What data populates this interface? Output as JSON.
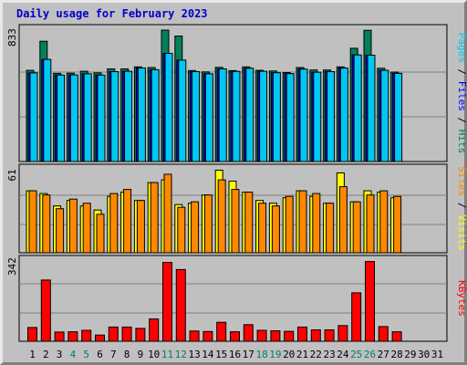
{
  "title": "Daily usage for February 2023",
  "colors": {
    "hits": "#00805c",
    "files": "#0000ff",
    "pages": "#00c8f0",
    "visits": "#ffff00",
    "sites": "#ff8800",
    "kbytes": "#ff0000",
    "weekend_label": "#00805c",
    "weekday_label": "#000000"
  },
  "chart_data": [
    {
      "type": "bar",
      "panel": "hits-files-pages",
      "ymax_label": "833",
      "ylim": [
        0,
        833
      ],
      "legend": [
        {
          "text": "Pages",
          "color": "#00c8f0"
        },
        {
          "text": " / ",
          "color": "#000000"
        },
        {
          "text": "Files",
          "color": "#0000ff"
        },
        {
          "text": " / ",
          "color": "#000000"
        },
        {
          "text": "Hits",
          "color": "#00805c"
        }
      ],
      "categories": [
        "1",
        "2",
        "3",
        "4",
        "5",
        "6",
        "7",
        "8",
        "9",
        "10",
        "11",
        "12",
        "13",
        "14",
        "15",
        "16",
        "17",
        "18",
        "19",
        "20",
        "21",
        "22",
        "23",
        "24",
        "25",
        "26",
        "27",
        "28"
      ],
      "series": [
        {
          "name": "Hits",
          "values": [
            574,
            757,
            555,
            556,
            568,
            558,
            583,
            583,
            596,
            592,
            827,
            790,
            573,
            564,
            593,
            572,
            596,
            574,
            570,
            560,
            592,
            576,
            576,
            596,
            713,
            826,
            587,
            563
          ]
        },
        {
          "name": "Pages",
          "values": [
            558,
            642,
            544,
            545,
            552,
            544,
            566,
            568,
            589,
            578,
            681,
            638,
            566,
            552,
            583,
            567,
            587,
            568,
            559,
            553,
            582,
            562,
            566,
            588,
            671,
            669,
            574,
            555
          ]
        }
      ]
    },
    {
      "type": "bar",
      "panel": "visits-sites",
      "ymax_label": "61",
      "ylim": [
        0,
        61
      ],
      "legend": [
        {
          "text": "Sites",
          "color": "#ff8800"
        },
        {
          "text": " / ",
          "color": "#000000"
        },
        {
          "text": "Visits",
          "color": "#ffff00"
        }
      ],
      "categories": [
        "1",
        "2",
        "3",
        "4",
        "5",
        "6",
        "7",
        "8",
        "9",
        "10",
        "11",
        "12",
        "13",
        "14",
        "15",
        "16",
        "17",
        "18",
        "19",
        "20",
        "21",
        "22",
        "23",
        "24",
        "25",
        "26",
        "27",
        "28"
      ],
      "series": [
        {
          "name": "Visits",
          "values": [
            45,
            43,
            34,
            38,
            34,
            31,
            41,
            44,
            38,
            51,
            53,
            35,
            36,
            42,
            60,
            52,
            44,
            38,
            36,
            40,
            45,
            41,
            36,
            58,
            37,
            45,
            44,
            40
          ]
        },
        {
          "name": "Sites",
          "values": [
            45,
            42,
            32,
            39,
            36,
            28,
            43,
            46,
            38,
            51,
            57,
            33,
            37,
            42,
            53,
            46,
            44,
            36,
            34,
            41,
            45,
            43,
            36,
            48,
            37,
            42,
            45,
            41
          ]
        }
      ]
    },
    {
      "type": "bar",
      "panel": "kbytes",
      "ymax_label": "342",
      "ylim": [
        0,
        342
      ],
      "legend": [
        {
          "text": "KBytes",
          "color": "#ff0000"
        }
      ],
      "categories": [
        "1",
        "2",
        "3",
        "4",
        "5",
        "6",
        "7",
        "8",
        "9",
        "10",
        "11",
        "12",
        "13",
        "14",
        "15",
        "16",
        "17",
        "18",
        "19",
        "20",
        "21",
        "22",
        "23",
        "24",
        "25",
        "26",
        "27",
        "28"
      ],
      "series": [
        {
          "name": "KBytes",
          "values": [
            58,
            258,
            39,
            40,
            46,
            26,
            60,
            60,
            54,
            94,
            332,
            302,
            43,
            41,
            80,
            40,
            70,
            46,
            44,
            42,
            60,
            48,
            48,
            66,
            204,
            336,
            62,
            40
          ]
        }
      ]
    }
  ],
  "x_ticks": [
    {
      "label": "1",
      "weekend": false
    },
    {
      "label": "2",
      "weekend": false
    },
    {
      "label": "3",
      "weekend": false
    },
    {
      "label": "4",
      "weekend": true
    },
    {
      "label": "5",
      "weekend": true
    },
    {
      "label": "6",
      "weekend": false
    },
    {
      "label": "7",
      "weekend": false
    },
    {
      "label": "8",
      "weekend": false
    },
    {
      "label": "9",
      "weekend": false
    },
    {
      "label": "10",
      "weekend": false
    },
    {
      "label": "11",
      "weekend": true
    },
    {
      "label": "12",
      "weekend": true
    },
    {
      "label": "13",
      "weekend": false
    },
    {
      "label": "14",
      "weekend": false
    },
    {
      "label": "15",
      "weekend": false
    },
    {
      "label": "16",
      "weekend": false
    },
    {
      "label": "17",
      "weekend": false
    },
    {
      "label": "18",
      "weekend": true
    },
    {
      "label": "19",
      "weekend": true
    },
    {
      "label": "20",
      "weekend": false
    },
    {
      "label": "21",
      "weekend": false
    },
    {
      "label": "22",
      "weekend": false
    },
    {
      "label": "23",
      "weekend": false
    },
    {
      "label": "24",
      "weekend": false
    },
    {
      "label": "25",
      "weekend": true
    },
    {
      "label": "26",
      "weekend": true
    },
    {
      "label": "27",
      "weekend": false
    },
    {
      "label": "28",
      "weekend": false
    },
    {
      "label": "29",
      "weekend": false
    },
    {
      "label": "30",
      "weekend": false
    },
    {
      "label": "31",
      "weekend": false
    }
  ]
}
